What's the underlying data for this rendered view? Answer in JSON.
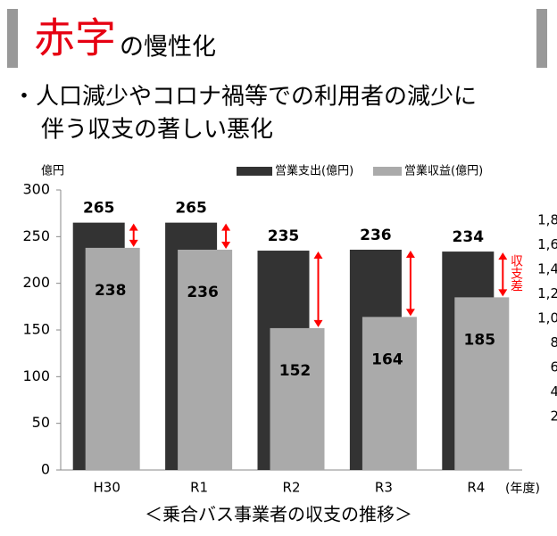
{
  "header": {
    "title_red": "赤字",
    "title_rest": "の慢性化",
    "bullet_lines": [
      "・人口減少やコロナ禍等での利用者の減少に",
      "伴う収支の著しい悪化"
    ]
  },
  "chart_data": {
    "type": "bar",
    "y_axis_label": "億円",
    "x_axis_label": "(年度)",
    "caption": "＜乗合バス事業者の収支の推移＞",
    "annotation": "収支差",
    "categories": [
      "H30",
      "R1",
      "R2",
      "R3",
      "R4"
    ],
    "series": [
      {
        "name": "営業支出(億円)",
        "color": "#333333",
        "values": [
          265,
          265,
          235,
          236,
          234
        ]
      },
      {
        "name": "営業収益(億円)",
        "color": "#aaaaaa",
        "values": [
          238,
          236,
          152,
          164,
          185
        ]
      }
    ],
    "ylim": [
      0,
      300
    ],
    "yticks": [
      0,
      50,
      100,
      150,
      200,
      250,
      300
    ],
    "diff_arrow_color": "#ff0000"
  },
  "clipped_axis_labels": [
    "1,8",
    "1,6",
    "1,4",
    "1,2",
    "1,0",
    "8",
    "6",
    "4",
    "2"
  ]
}
